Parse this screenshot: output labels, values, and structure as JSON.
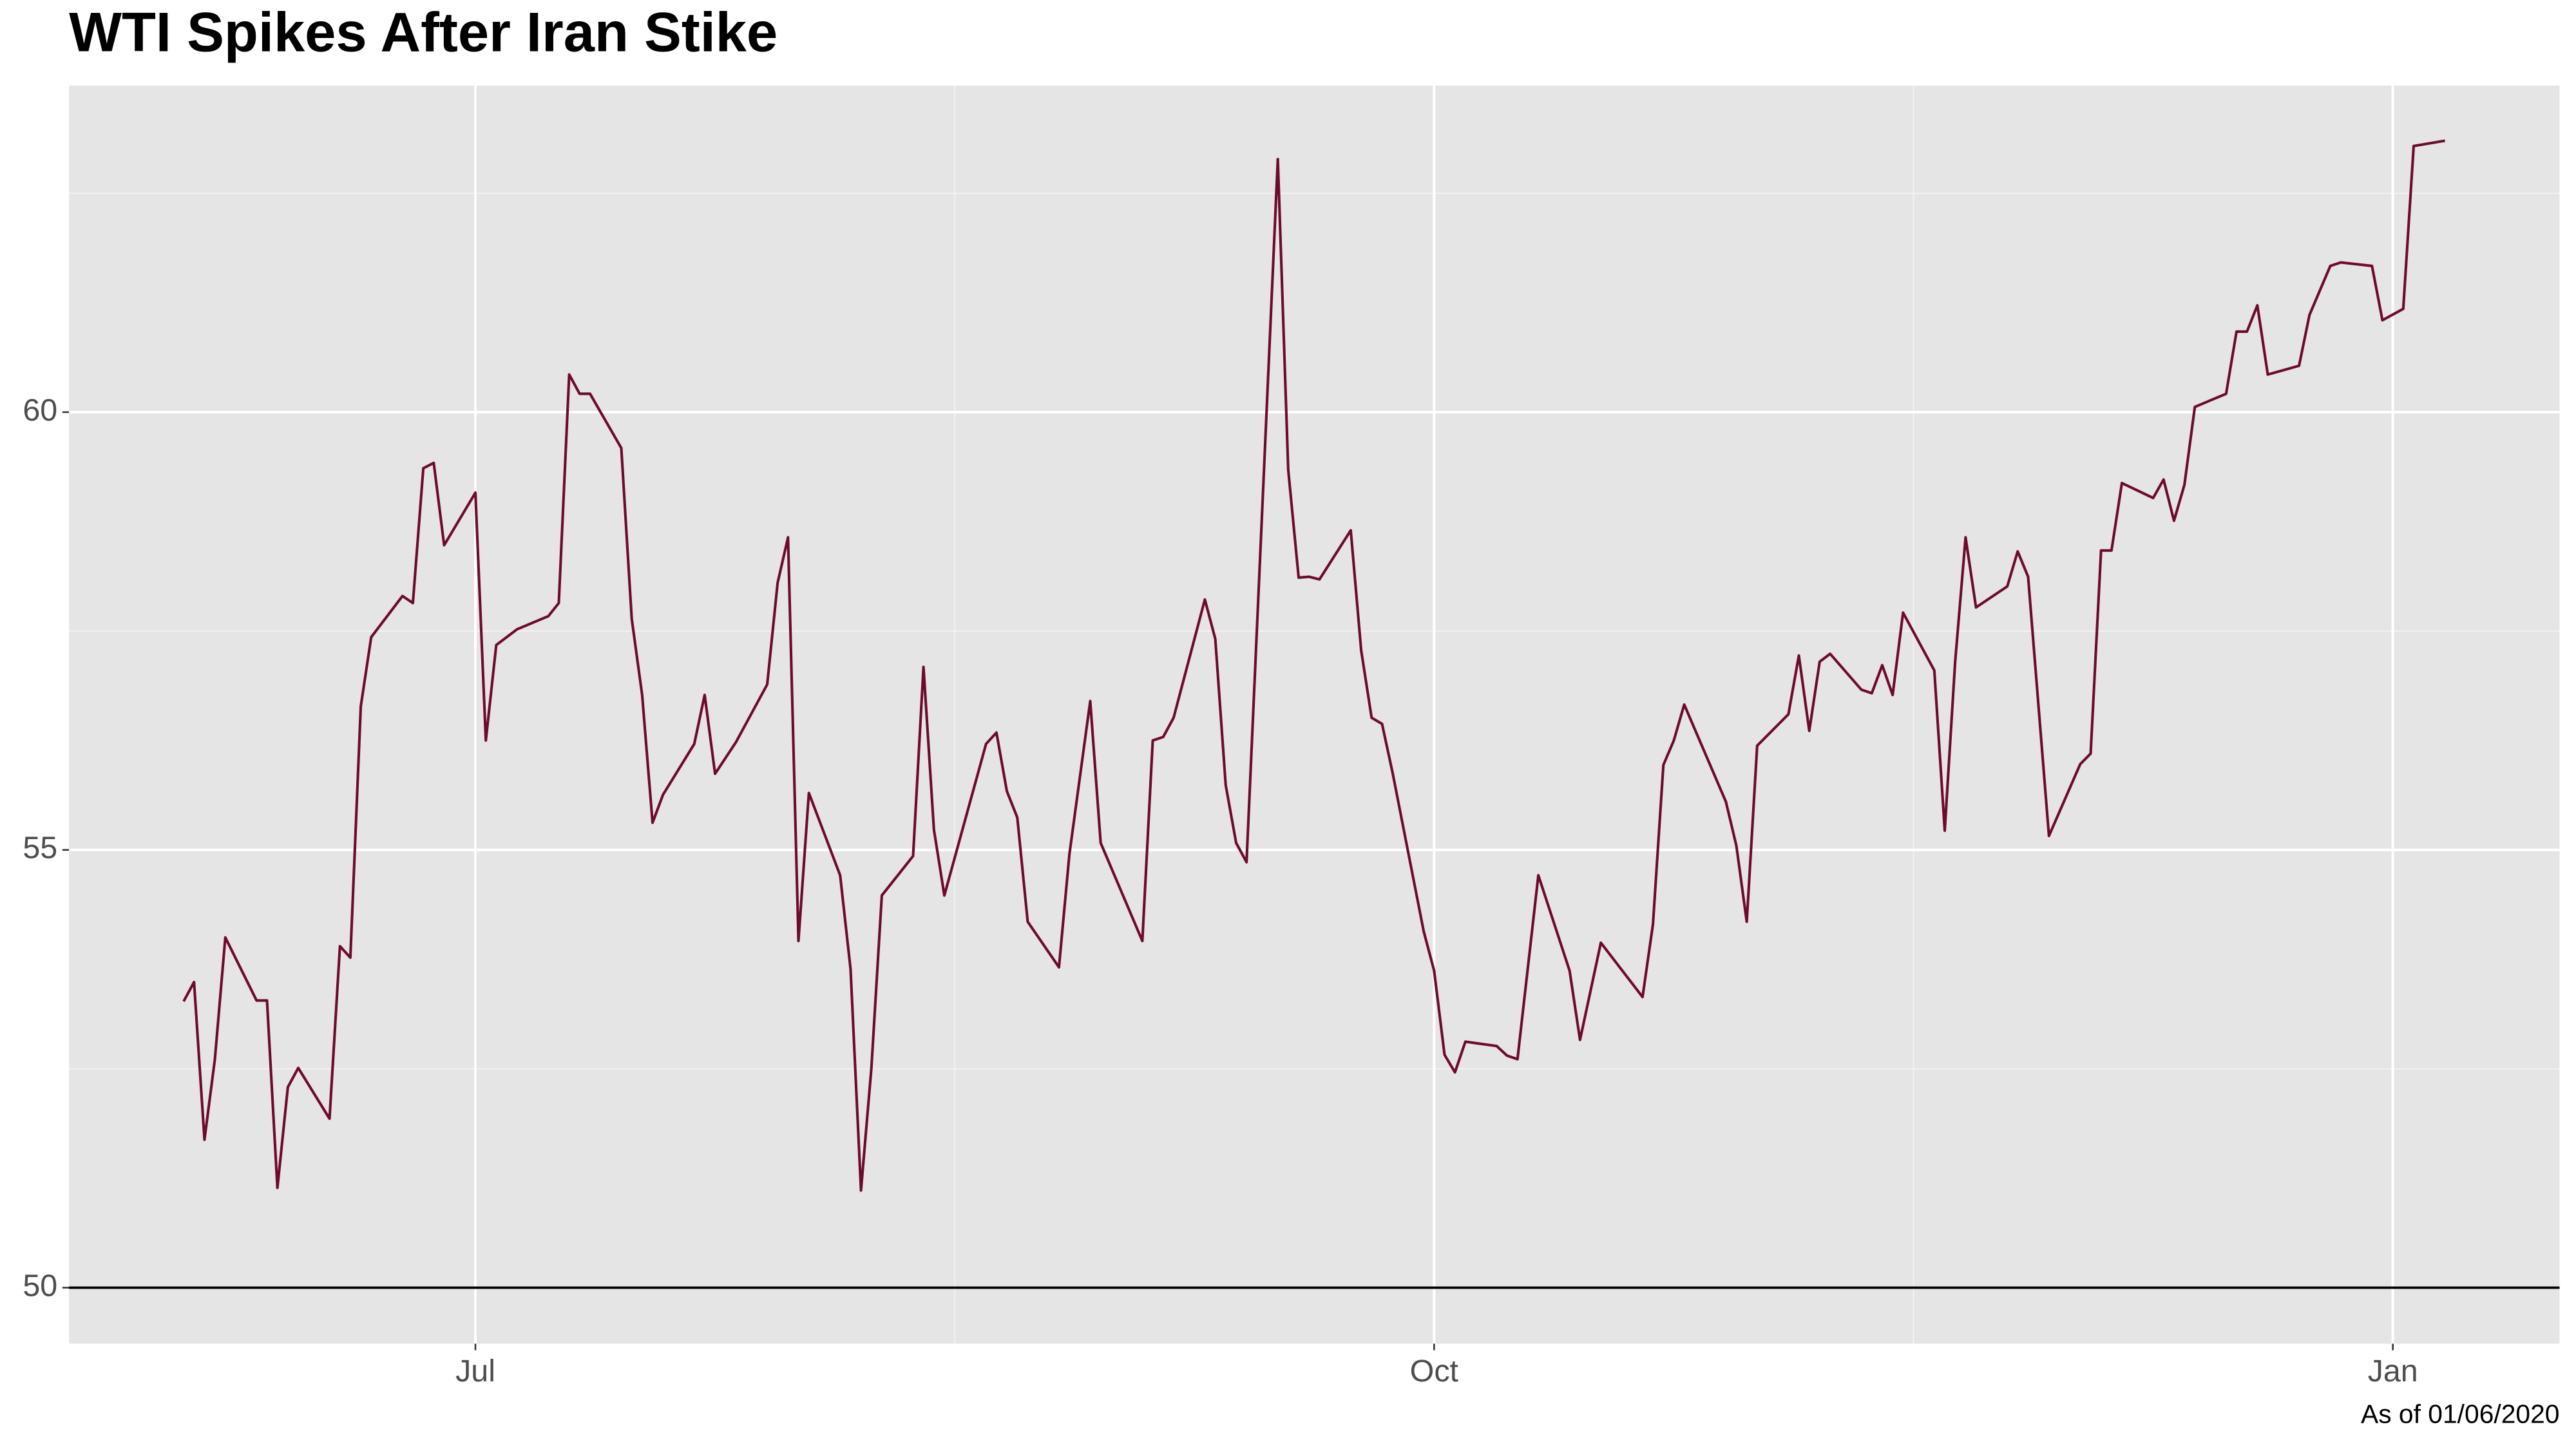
{
  "chart_data": {
    "type": "line",
    "title": "WTI Spikes After Iran Stike",
    "caption": "As of 01/06/2020",
    "x": [
      -28,
      -27,
      -26,
      -25,
      -24,
      -21,
      -20,
      -19,
      -18,
      -17,
      -14,
      -13,
      -12,
      -11,
      -10,
      -7,
      -6,
      -5,
      -4,
      -3,
      0,
      1,
      2,
      4,
      7,
      8,
      9,
      10,
      11,
      14,
      15,
      16,
      17,
      18,
      21,
      22,
      23,
      25,
      28,
      29,
      30,
      31,
      32,
      35,
      36,
      37,
      38,
      39,
      42,
      43,
      44,
      45,
      49,
      50,
      51,
      52,
      53,
      56,
      57,
      59,
      60,
      64,
      65,
      66,
      67,
      70,
      71,
      72,
      73,
      74,
      77,
      78,
      79,
      80,
      81,
      84,
      85,
      86,
      87,
      88,
      91,
      92,
      93,
      94,
      95,
      98,
      99,
      100,
      102,
      105,
      106,
      108,
      112,
      113,
      114,
      115,
      116,
      120,
      121,
      122,
      123,
      126,
      127,
      128,
      129,
      130,
      133,
      134,
      135,
      136,
      137,
      140,
      141,
      142,
      143,
      144,
      147,
      148,
      149,
      151,
      154,
      155,
      156,
      157,
      158,
      161,
      162,
      163,
      164,
      165,
      168,
      169,
      170,
      171,
      172,
      175,
      176,
      178,
      179,
      182,
      183,
      185,
      186,
      189
    ],
    "series": [
      {
        "color": "#6e0a2e",
        "values": [
          53.27,
          53.49,
          51.69,
          52.61,
          54.0,
          53.28,
          53.28,
          51.14,
          52.29,
          52.51,
          51.93,
          53.9,
          53.77,
          56.64,
          57.43,
          57.9,
          57.82,
          59.36,
          59.42,
          58.48,
          59.08,
          56.25,
          57.34,
          57.52,
          57.67,
          57.82,
          60.43,
          60.21,
          60.21,
          59.59,
          57.64,
          56.77,
          55.31,
          55.63,
          56.21,
          56.77,
          55.87,
          56.23,
          56.89,
          58.05,
          58.57,
          53.96,
          55.65,
          54.71,
          53.64,
          51.11,
          52.51,
          54.48,
          54.93,
          57.09,
          55.23,
          54.48,
          56.21,
          56.34,
          55.67,
          55.37,
          54.18,
          53.66,
          54.95,
          56.7,
          55.08,
          53.96,
          56.25,
          56.29,
          56.51,
          57.86,
          57.41,
          55.74,
          55.08,
          54.86,
          62.89,
          59.34,
          58.11,
          58.12,
          58.09,
          58.65,
          57.28,
          56.51,
          56.44,
          55.89,
          54.07,
          53.62,
          52.66,
          52.46,
          52.81,
          52.76,
          52.65,
          52.61,
          54.71,
          53.62,
          52.83,
          53.94,
          53.32,
          54.15,
          55.97,
          56.25,
          56.66,
          55.55,
          55.05,
          54.18,
          56.19,
          56.55,
          57.22,
          56.36,
          57.15,
          57.24,
          56.83,
          56.79,
          57.11,
          56.77,
          57.71,
          57.05,
          55.22,
          57.15,
          58.57,
          57.77,
          58.01,
          58.41,
          58.12,
          55.16,
          55.98,
          56.1,
          58.42,
          58.42,
          59.19,
          59.02,
          59.23,
          58.76,
          59.17,
          60.06,
          60.21,
          60.92,
          60.92,
          61.22,
          60.43,
          60.53,
          61.11,
          61.67,
          61.71,
          61.67,
          61.05,
          61.18,
          63.04,
          63.1
        ]
      }
    ],
    "xlim": [
      -39,
      200
    ],
    "xticks": [
      {
        "value": 0,
        "label": "Jul"
      },
      {
        "value": 92,
        "label": "Oct"
      },
      {
        "value": 184,
        "label": "Jan"
      }
    ],
    "x_minor_ticks": [
      46,
      138
    ],
    "ylim": [
      49.36,
      63.73
    ],
    "yticks": [
      50,
      55,
      60
    ],
    "y_minor_ticks": [
      52.5,
      57.5,
      62.5
    ],
    "hline": 50,
    "grid": true
  }
}
